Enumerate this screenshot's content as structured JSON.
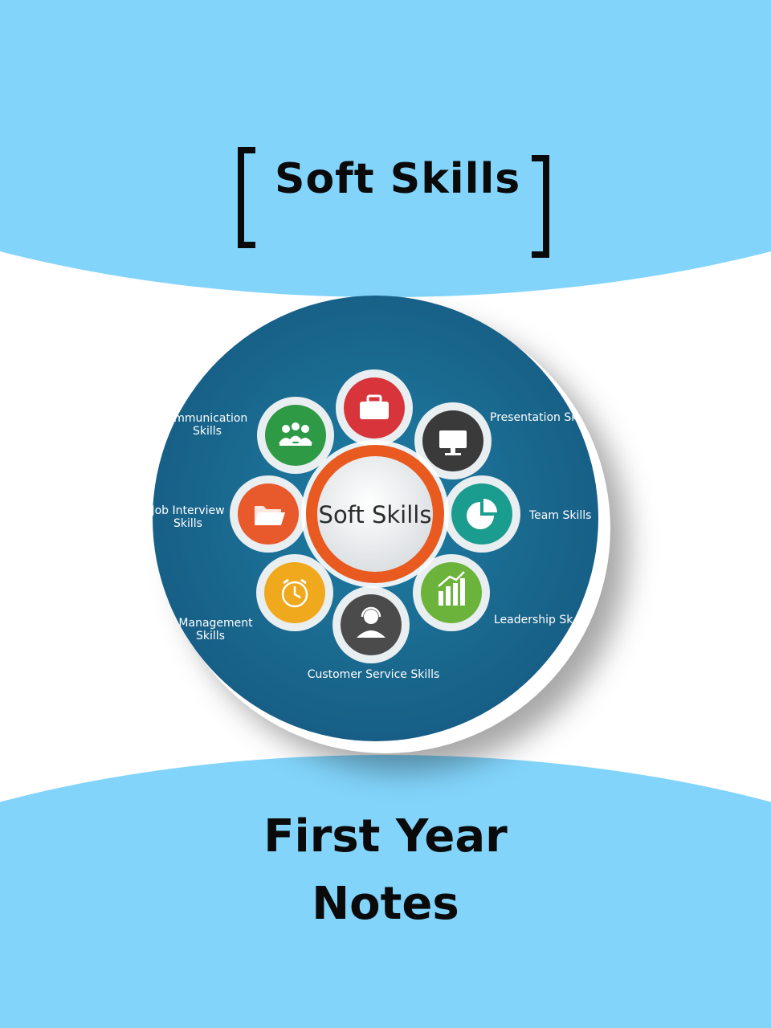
{
  "header": {
    "title": "Soft Skills"
  },
  "diagram": {
    "center_label": "Soft Skills",
    "labels": {
      "communication_line1": "ommunication",
      "communication_line2": "Skills",
      "presentation": "Presentation Sk",
      "job_interview_line1": "Job Interview",
      "job_interview_line2": "Skills",
      "team": "Team Skills",
      "time_management_line1": "e Management",
      "time_management_line2": "Skills",
      "leadership": "Leadership Sk",
      "customer_service": "Customer Service Skills"
    },
    "colors": {
      "red": "#d8343c",
      "dark": "#3a3a3a",
      "teal": "#1a9c8f",
      "green": "#6bb33a",
      "gray": "#4b4b4b",
      "yellow": "#f0a81c",
      "orange": "#e8592c",
      "darkgreen": "#2e9a45",
      "ring": "#e85a1f"
    }
  },
  "footer": {
    "line1": "First Year",
    "line2": "Notes"
  }
}
